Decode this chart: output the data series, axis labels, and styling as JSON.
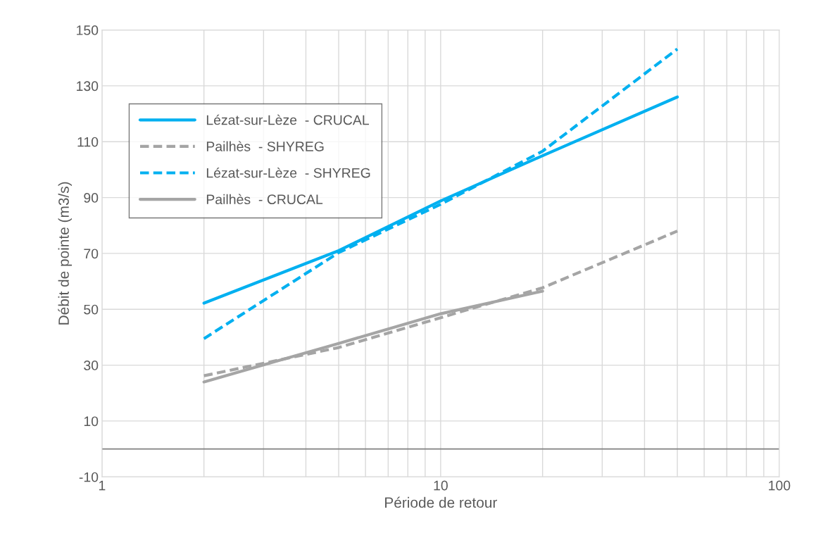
{
  "chart_data": {
    "type": "line",
    "xlabel": "Période de retour",
    "ylabel": "Débit de pointe (m3/s)",
    "log": "x",
    "xlim": [
      1,
      100
    ],
    "xticks": [
      1,
      10,
      100
    ],
    "ylim": [
      -10,
      150
    ],
    "yticks": [
      -10,
      10,
      30,
      50,
      70,
      90,
      110,
      130,
      150
    ],
    "grid": true,
    "legend": "top left",
    "marker": "none",
    "ref_lines": [
      {
        "axis": "y",
        "value": 0,
        "color": "#808080"
      }
    ],
    "series": [
      {
        "name": "Lézat-sur-Lèze  - CRUCAL",
        "color": "#00b0f0",
        "line_style": "solid",
        "x": [
          2,
          5,
          10,
          20,
          50
        ],
        "values": [
          52.2,
          71,
          88.8,
          105,
          126
        ]
      },
      {
        "name": "Pailhès  - SHYREG",
        "color": "#a5a5a5",
        "line_style": "dashed",
        "x": [
          2,
          5,
          10,
          20,
          50
        ],
        "values": [
          26.2,
          36.3,
          47,
          57.7,
          78
        ]
      },
      {
        "name": "Lézat-sur-Lèze  - SHYREG",
        "color": "#00b0f0",
        "line_style": "dashed",
        "x": [
          2,
          5,
          10,
          20,
          50
        ],
        "values": [
          39.5,
          70.3,
          87.6,
          106.6,
          143.2
        ]
      },
      {
        "name": "Pailhès  - CRUCAL",
        "color": "#a5a5a5",
        "line_style": "solid",
        "x": [
          2,
          5,
          10,
          20
        ],
        "values": [
          24,
          37.8,
          48.4,
          56.5
        ]
      }
    ]
  }
}
